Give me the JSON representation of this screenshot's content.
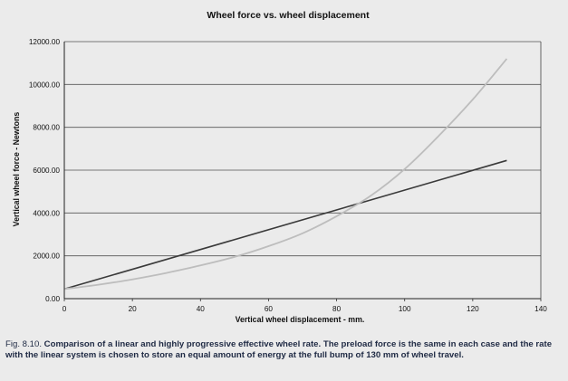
{
  "chart_data": {
    "type": "line",
    "title": "Wheel force vs. wheel displacement",
    "xlabel": "Vertical wheel displacement - mm.",
    "ylabel": "Vertical wheel force - Newtons",
    "xlim": [
      0,
      140
    ],
    "ylim": [
      0,
      12000
    ],
    "x_ticks": [
      "0",
      "20",
      "40",
      "60",
      "80",
      "100",
      "120",
      "140"
    ],
    "y_ticks": [
      "0.00",
      "2000.00",
      "4000.00",
      "6000.00",
      "8000.00",
      "10000.00",
      "12000.00"
    ],
    "grid": "horizontal",
    "legend": "none",
    "series": [
      {
        "style": "linear",
        "color": "#3a3a3a",
        "x": [
          0,
          130
        ],
        "y": [
          450,
          6450
        ]
      },
      {
        "style": "progressive",
        "color": "#bdbdbd",
        "x": [
          0,
          10,
          20,
          30,
          40,
          50,
          60,
          70,
          80,
          90,
          100,
          110,
          120,
          130
        ],
        "y": [
          450,
          650,
          900,
          1200,
          1550,
          1950,
          2450,
          3050,
          3850,
          4800,
          6050,
          7600,
          9300,
          11200
        ]
      }
    ]
  },
  "caption": {
    "fig_label": "Fig. 8.10.",
    "text": "Comparison of a linear and highly progressive effective wheel rate.  The preload force is the same in each case and the rate with the linear system is chosen to store an equal amount of energy at the full bump of 130 mm of wheel travel."
  }
}
